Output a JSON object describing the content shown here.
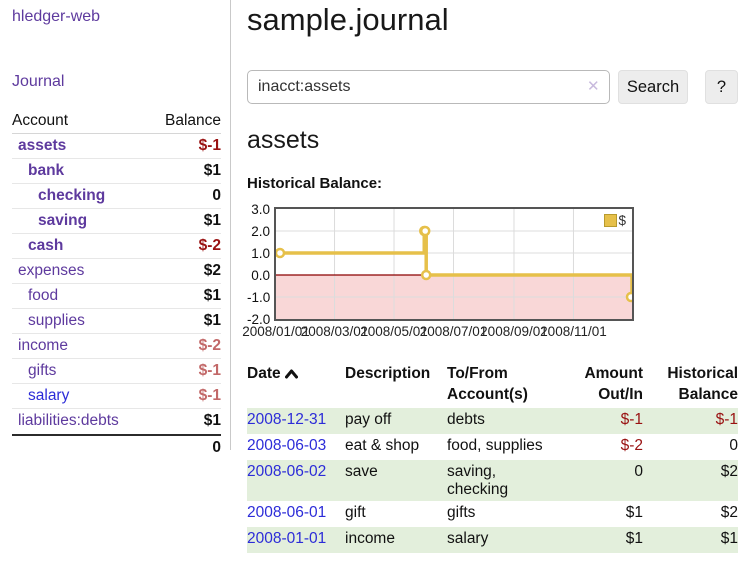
{
  "sidebar": {
    "app_title": "hledger-web",
    "nav_journal": "Journal",
    "accounts_table": {
      "header_account": "Account",
      "header_balance": "Balance",
      "rows": [
        {
          "name": "assets",
          "level": 0,
          "bold": true,
          "link_style": "purple",
          "balance": "$-1",
          "balance_style": "neg-strong"
        },
        {
          "name": "bank",
          "level": 1,
          "bold": true,
          "link_style": "purple",
          "balance": "$1",
          "balance_style": "pos"
        },
        {
          "name": "checking",
          "level": 2,
          "bold": true,
          "link_style": "purple",
          "balance": "0",
          "balance_style": "pos"
        },
        {
          "name": "saving",
          "level": 2,
          "bold": true,
          "link_style": "purple",
          "balance": "$1",
          "balance_style": "pos"
        },
        {
          "name": "cash",
          "level": 1,
          "bold": true,
          "link_style": "purple",
          "balance": "$-2",
          "balance_style": "neg-strong"
        },
        {
          "name": "expenses",
          "level": 0,
          "bold": false,
          "link_style": "purple",
          "balance": "$2",
          "balance_style": "pos"
        },
        {
          "name": "food",
          "level": 1,
          "bold": false,
          "link_style": "purple",
          "balance": "$1",
          "balance_style": "pos"
        },
        {
          "name": "supplies",
          "level": 1,
          "bold": false,
          "link_style": "purple",
          "balance": "$1",
          "balance_style": "pos"
        },
        {
          "name": "income",
          "level": 0,
          "bold": false,
          "link_style": "purple",
          "balance": "$-2",
          "balance_style": "neg-muted"
        },
        {
          "name": "gifts",
          "level": 1,
          "bold": false,
          "link_style": "purple",
          "balance": "$-1",
          "balance_style": "neg-muted"
        },
        {
          "name": "salary",
          "level": 1,
          "bold": false,
          "link_style": "blue",
          "balance": "$-1",
          "balance_style": "neg-muted"
        },
        {
          "name": "liabilities:debts",
          "level": 0,
          "bold": false,
          "link_style": "purple",
          "balance": "$1",
          "balance_style": "pos"
        }
      ],
      "total": "0"
    }
  },
  "main": {
    "title": "sample.journal",
    "search": {
      "value": "inacct:assets",
      "clear_icon": "✕",
      "search_button": "Search",
      "help_button": "?"
    },
    "account_heading": "assets",
    "chart_heading": "Historical Balance:",
    "register_table": {
      "headers": {
        "date": "Date",
        "description": "Description",
        "accounts": "To/From\nAccount(s)",
        "amount": "Amount\nOut/In",
        "balance": "Historical\nBalance"
      },
      "rows": [
        {
          "date": "2008-12-31",
          "description": "pay off",
          "accounts": "debts",
          "amount": "$-1",
          "amount_style": "neg",
          "balance": "$-1",
          "balance_style": "neg",
          "shaded": true
        },
        {
          "date": "2008-06-03",
          "description": "eat & shop",
          "accounts": "food, supplies",
          "amount": "$-2",
          "amount_style": "neg",
          "balance": "0",
          "balance_style": "pos",
          "shaded": false
        },
        {
          "date": "2008-06-02",
          "description": "save",
          "accounts": "saving,\nchecking",
          "amount": "0",
          "amount_style": "pos",
          "balance": "$2",
          "balance_style": "pos",
          "shaded": true
        },
        {
          "date": "2008-06-01",
          "description": "gift",
          "accounts": "gifts",
          "amount": "$1",
          "amount_style": "pos",
          "balance": "$2",
          "balance_style": "pos",
          "shaded": false
        },
        {
          "date": "2008-01-01",
          "description": "income",
          "accounts": "salary",
          "amount": "$1",
          "amount_style": "pos",
          "balance": "$1",
          "balance_style": "pos",
          "shaded": true
        }
      ]
    }
  },
  "chart_data": {
    "type": "line",
    "style": "step-after",
    "title": "Historical Balance:",
    "legend": "$",
    "legend_position": "top-right",
    "series": [
      {
        "name": "$",
        "points": [
          [
            "2008-01-01",
            1
          ],
          [
            "2008-06-01",
            2
          ],
          [
            "2008-06-02",
            2
          ],
          [
            "2008-06-03",
            0
          ],
          [
            "2008-12-31",
            -1
          ]
        ]
      }
    ],
    "x_range": [
      "2008-01-01",
      "2008-12-31"
    ],
    "ylim": [
      -2,
      3
    ],
    "y_tick_values": [
      3,
      2,
      1,
      0,
      -1,
      -2
    ],
    "y_tick_labels": [
      "3.0",
      "2.0",
      "1.0",
      "0.0",
      "-1.0",
      "-2.0"
    ],
    "x_tick_dates": [
      "2008-01-01",
      "2008-03-01",
      "2008-05-01",
      "2008-07-01",
      "2008-09-01",
      "2008-11-01"
    ],
    "x_tick_labels": [
      "2008/01/01",
      "2008/03/01",
      "2008/05/01",
      "2008/07/01",
      "2008/09/01",
      "2008/11/01"
    ],
    "grid": true,
    "marker": "open-circle",
    "colors": {
      "line": "#e6c04a",
      "marker_fill": "#ffffff",
      "negative_area": "#f9d7d7",
      "zero_line": "#8b0000",
      "gridline": "#dcdcdc",
      "plot_border": "#555555"
    }
  }
}
